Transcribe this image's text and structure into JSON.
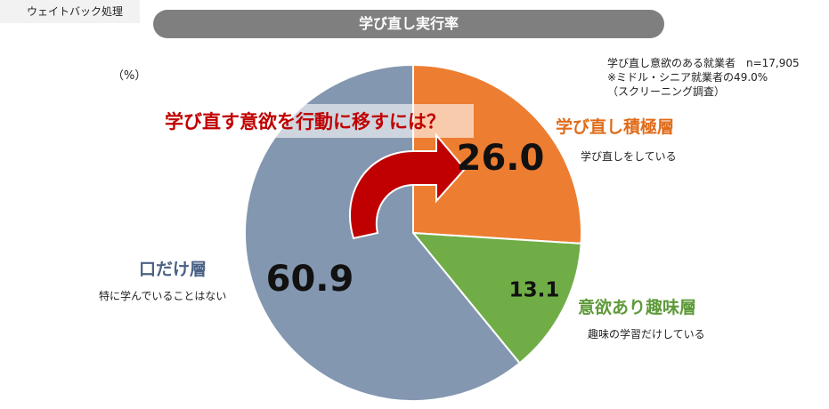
{
  "tag": "ウェイトバック処理",
  "title": "学び直し実行率",
  "unit": "（%）",
  "note": "学び直し意欲のある就業者　n=17,905\n※ミドル・シニア就業者の49.0%\n（スクリーニング調査）",
  "callout": "学び直す意欲を行動に移すには？",
  "chart_data": {
    "type": "pie",
    "slices": [
      {
        "name": "学び直し積極層",
        "desc": "学び直しをしている",
        "value": 26.0,
        "label": "26.0",
        "color": "#ed7d31"
      },
      {
        "name": "意欲あり趣味層",
        "desc": "趣味の学習だけしている",
        "value": 13.1,
        "label": "13.1",
        "color": "#70ad47"
      },
      {
        "name": "口だけ層",
        "desc": "特に学んでいることはない",
        "value": 60.9,
        "label": "60.9",
        "color": "#8497b0"
      }
    ]
  }
}
